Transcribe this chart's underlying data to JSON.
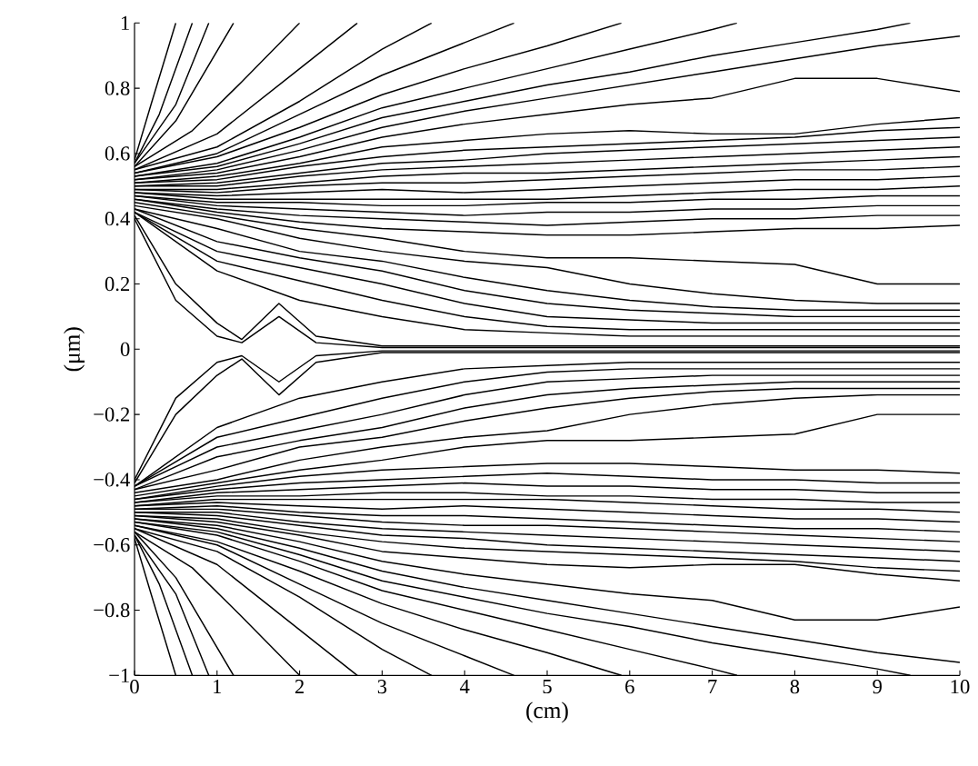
{
  "chart_data": {
    "type": "line",
    "xlabel": "(cm)",
    "ylabel": "(μm)",
    "color": "#000000",
    "marker": "none",
    "line_style": "solid",
    "grid": false,
    "xlim": [
      0,
      10
    ],
    "ylim": [
      -1,
      1
    ],
    "xticks": [
      0,
      1,
      2,
      3,
      4,
      5,
      6,
      7,
      8,
      9,
      10
    ],
    "yticks": [
      {
        "value": -1,
        "label": "−1"
      },
      {
        "value": -0.8,
        "label": "−0.8"
      },
      {
        "value": -0.6,
        "label": "−0.6"
      },
      {
        "value": -0.4,
        "label": "−0.4"
      },
      {
        "value": -0.2,
        "label": "−0.2"
      },
      0,
      0.2,
      0.4,
      0.6,
      0.8,
      1
    ],
    "x": [
      0,
      1,
      2,
      3,
      4,
      5,
      6,
      7,
      8,
      9,
      10
    ],
    "series": [
      {
        "x": [
          0,
          0.2,
          0.5
        ],
        "values": [
          0.58,
          0.75,
          1.0
        ]
      },
      {
        "x": [
          0,
          0.3,
          0.7
        ],
        "values": [
          0.57,
          0.72,
          1.0
        ]
      },
      {
        "x": [
          0,
          0.5,
          0.9
        ],
        "values": [
          0.57,
          0.75,
          1.0
        ]
      },
      {
        "x": [
          0,
          0.5,
          1.2
        ],
        "values": [
          0.56,
          0.7,
          1.0
        ]
      },
      {
        "x": [
          0,
          0.7,
          1.3,
          2.0
        ],
        "values": [
          0.56,
          0.67,
          0.82,
          1.0
        ]
      },
      {
        "x": [
          0,
          1,
          2,
          2.7
        ],
        "values": [
          0.55,
          0.66,
          0.86,
          1.0
        ]
      },
      {
        "x": [
          0,
          1,
          2,
          3,
          3.6
        ],
        "values": [
          0.55,
          0.62,
          0.76,
          0.92,
          1.0
        ]
      },
      {
        "x": [
          0,
          1,
          2,
          3,
          4,
          4.6
        ],
        "values": [
          0.54,
          0.6,
          0.72,
          0.84,
          0.94,
          1.0
        ]
      },
      {
        "x": [
          0,
          1,
          2,
          3,
          4,
          5,
          5.9
        ],
        "values": [
          0.54,
          0.59,
          0.68,
          0.78,
          0.86,
          0.93,
          1.0
        ]
      },
      {
        "x": [
          0,
          1,
          2,
          3,
          4,
          5,
          6,
          7,
          7.3
        ],
        "values": [
          0.53,
          0.57,
          0.65,
          0.74,
          0.8,
          0.86,
          0.92,
          0.98,
          1.0
        ]
      },
      {
        "x": [
          0,
          1,
          2,
          3,
          4,
          5,
          6,
          7,
          8,
          9,
          9.4
        ],
        "values": [
          0.53,
          0.56,
          0.63,
          0.71,
          0.76,
          0.81,
          0.85,
          0.9,
          0.94,
          0.98,
          1.0
        ]
      },
      {
        "values": [
          0.52,
          0.55,
          0.61,
          0.68,
          0.73,
          0.77,
          0.81,
          0.85,
          0.89,
          0.93,
          0.96
        ]
      },
      {
        "values": [
          0.52,
          0.54,
          0.59,
          0.65,
          0.69,
          0.72,
          0.75,
          0.77,
          0.83,
          0.83,
          0.79
        ]
      },
      {
        "values": [
          0.51,
          0.53,
          0.57,
          0.62,
          0.64,
          0.66,
          0.67,
          0.66,
          0.66,
          0.69,
          0.71
        ]
      },
      {
        "values": [
          0.51,
          0.52,
          0.56,
          0.59,
          0.61,
          0.62,
          0.63,
          0.64,
          0.65,
          0.67,
          0.68
        ]
      },
      {
        "values": [
          0.5,
          0.51,
          0.54,
          0.57,
          0.58,
          0.6,
          0.61,
          0.62,
          0.63,
          0.64,
          0.65
        ]
      },
      {
        "values": [
          0.5,
          0.5,
          0.53,
          0.55,
          0.56,
          0.57,
          0.58,
          0.59,
          0.6,
          0.61,
          0.62
        ]
      },
      {
        "values": [
          0.49,
          0.49,
          0.51,
          0.53,
          0.54,
          0.54,
          0.55,
          0.56,
          0.57,
          0.58,
          0.59
        ]
      },
      {
        "values": [
          0.49,
          0.48,
          0.5,
          0.51,
          0.51,
          0.52,
          0.53,
          0.54,
          0.55,
          0.55,
          0.56
        ]
      },
      {
        "values": [
          0.48,
          0.47,
          0.48,
          0.49,
          0.48,
          0.49,
          0.5,
          0.51,
          0.52,
          0.52,
          0.53
        ]
      },
      {
        "values": [
          0.48,
          0.46,
          0.46,
          0.46,
          0.46,
          0.46,
          0.47,
          0.48,
          0.49,
          0.49,
          0.5
        ]
      },
      {
        "values": [
          0.47,
          0.45,
          0.45,
          0.44,
          0.44,
          0.45,
          0.45,
          0.46,
          0.46,
          0.47,
          0.47
        ]
      },
      {
        "values": [
          0.47,
          0.44,
          0.43,
          0.42,
          0.41,
          0.42,
          0.42,
          0.43,
          0.43,
          0.44,
          0.44
        ]
      },
      {
        "values": [
          0.46,
          0.43,
          0.41,
          0.4,
          0.39,
          0.38,
          0.39,
          0.4,
          0.4,
          0.41,
          0.41
        ]
      },
      {
        "values": [
          0.46,
          0.42,
          0.39,
          0.37,
          0.36,
          0.35,
          0.35,
          0.36,
          0.37,
          0.37,
          0.38
        ]
      },
      {
        "values": [
          0.45,
          0.41,
          0.37,
          0.34,
          0.3,
          0.28,
          0.28,
          0.27,
          0.26,
          0.2,
          0.2
        ]
      },
      {
        "values": [
          0.44,
          0.4,
          0.34,
          0.3,
          0.27,
          0.25,
          0.2,
          0.17,
          0.15,
          0.14,
          0.14
        ]
      },
      {
        "values": [
          0.43,
          0.37,
          0.3,
          0.27,
          0.22,
          0.18,
          0.15,
          0.13,
          0.12,
          0.12,
          0.12
        ]
      },
      {
        "values": [
          0.43,
          0.33,
          0.28,
          0.24,
          0.18,
          0.14,
          0.12,
          0.11,
          0.1,
          0.1,
          0.1
        ]
      },
      {
        "values": [
          0.42,
          0.3,
          0.25,
          0.2,
          0.14,
          0.1,
          0.09,
          0.08,
          0.08,
          0.08,
          0.08
        ]
      },
      {
        "values": [
          0.42,
          0.27,
          0.21,
          0.15,
          0.1,
          0.07,
          0.06,
          0.06,
          0.06,
          0.06,
          0.06
        ]
      },
      {
        "values": [
          0.42,
          0.24,
          0.15,
          0.1,
          0.06,
          0.05,
          0.04,
          0.04,
          0.04,
          0.04,
          0.04
        ]
      },
      {
        "x": [
          0,
          0.5,
          1,
          1.3,
          1.75,
          2.2,
          3,
          10
        ],
        "values": [
          0.41,
          0.2,
          0.08,
          0.03,
          0.14,
          0.04,
          0.01,
          0.01
        ]
      },
      {
        "x": [
          0,
          0.5,
          1,
          1.3,
          1.75,
          2.2,
          3,
          10
        ],
        "values": [
          0.4,
          0.15,
          0.04,
          0.02,
          0.1,
          0.02,
          0.005,
          0.005
        ]
      },
      {
        "x": [
          0,
          0.5,
          1,
          1.3,
          1.75,
          2.2,
          3,
          10
        ],
        "values": [
          -0.4,
          -0.15,
          -0.04,
          -0.02,
          -0.1,
          -0.02,
          -0.005,
          -0.005
        ]
      },
      {
        "x": [
          0,
          0.5,
          1,
          1.3,
          1.75,
          2.2,
          3,
          10
        ],
        "values": [
          -0.41,
          -0.2,
          -0.08,
          -0.03,
          -0.14,
          -0.04,
          -0.01,
          -0.01
        ]
      },
      {
        "values": [
          -0.42,
          -0.24,
          -0.15,
          -0.1,
          -0.06,
          -0.05,
          -0.04,
          -0.04,
          -0.04,
          -0.04,
          -0.04
        ]
      },
      {
        "values": [
          -0.42,
          -0.27,
          -0.21,
          -0.15,
          -0.1,
          -0.07,
          -0.06,
          -0.06,
          -0.06,
          -0.06,
          -0.06
        ]
      },
      {
        "values": [
          -0.42,
          -0.3,
          -0.25,
          -0.2,
          -0.14,
          -0.1,
          -0.09,
          -0.08,
          -0.08,
          -0.08,
          -0.08
        ]
      },
      {
        "values": [
          -0.43,
          -0.33,
          -0.28,
          -0.24,
          -0.18,
          -0.14,
          -0.12,
          -0.11,
          -0.1,
          -0.1,
          -0.1
        ]
      },
      {
        "values": [
          -0.43,
          -0.37,
          -0.3,
          -0.27,
          -0.22,
          -0.18,
          -0.15,
          -0.13,
          -0.12,
          -0.12,
          -0.12
        ]
      },
      {
        "values": [
          -0.44,
          -0.4,
          -0.34,
          -0.3,
          -0.27,
          -0.25,
          -0.2,
          -0.17,
          -0.15,
          -0.14,
          -0.14
        ]
      },
      {
        "values": [
          -0.45,
          -0.41,
          -0.37,
          -0.34,
          -0.3,
          -0.28,
          -0.28,
          -0.27,
          -0.26,
          -0.2,
          -0.2
        ]
      },
      {
        "values": [
          -0.46,
          -0.42,
          -0.39,
          -0.37,
          -0.36,
          -0.35,
          -0.35,
          -0.36,
          -0.37,
          -0.37,
          -0.38
        ]
      },
      {
        "values": [
          -0.46,
          -0.43,
          -0.41,
          -0.4,
          -0.39,
          -0.38,
          -0.39,
          -0.4,
          -0.4,
          -0.41,
          -0.41
        ]
      },
      {
        "values": [
          -0.47,
          -0.44,
          -0.43,
          -0.42,
          -0.41,
          -0.42,
          -0.42,
          -0.43,
          -0.43,
          -0.44,
          -0.44
        ]
      },
      {
        "values": [
          -0.47,
          -0.45,
          -0.45,
          -0.44,
          -0.44,
          -0.45,
          -0.45,
          -0.46,
          -0.46,
          -0.47,
          -0.47
        ]
      },
      {
        "values": [
          -0.48,
          -0.46,
          -0.46,
          -0.46,
          -0.46,
          -0.46,
          -0.47,
          -0.48,
          -0.49,
          -0.49,
          -0.5
        ]
      },
      {
        "values": [
          -0.48,
          -0.47,
          -0.48,
          -0.49,
          -0.48,
          -0.49,
          -0.5,
          -0.51,
          -0.52,
          -0.52,
          -0.53
        ]
      },
      {
        "values": [
          -0.49,
          -0.48,
          -0.5,
          -0.51,
          -0.51,
          -0.52,
          -0.53,
          -0.54,
          -0.55,
          -0.55,
          -0.56
        ]
      },
      {
        "values": [
          -0.49,
          -0.49,
          -0.51,
          -0.53,
          -0.54,
          -0.54,
          -0.55,
          -0.56,
          -0.57,
          -0.58,
          -0.59
        ]
      },
      {
        "values": [
          -0.5,
          -0.5,
          -0.53,
          -0.55,
          -0.56,
          -0.57,
          -0.58,
          -0.59,
          -0.6,
          -0.61,
          -0.62
        ]
      },
      {
        "values": [
          -0.5,
          -0.51,
          -0.54,
          -0.57,
          -0.58,
          -0.6,
          -0.61,
          -0.62,
          -0.63,
          -0.64,
          -0.65
        ]
      },
      {
        "values": [
          -0.51,
          -0.52,
          -0.56,
          -0.59,
          -0.61,
          -0.62,
          -0.63,
          -0.64,
          -0.65,
          -0.67,
          -0.68
        ]
      },
      {
        "values": [
          -0.51,
          -0.53,
          -0.57,
          -0.62,
          -0.64,
          -0.66,
          -0.67,
          -0.66,
          -0.66,
          -0.69,
          -0.71
        ]
      },
      {
        "values": [
          -0.52,
          -0.54,
          -0.59,
          -0.65,
          -0.69,
          -0.72,
          -0.75,
          -0.77,
          -0.83,
          -0.83,
          -0.79
        ]
      },
      {
        "values": [
          -0.52,
          -0.55,
          -0.61,
          -0.68,
          -0.73,
          -0.77,
          -0.81,
          -0.85,
          -0.89,
          -0.93,
          -0.96
        ]
      },
      {
        "x": [
          0,
          1,
          2,
          3,
          4,
          5,
          6,
          7,
          8,
          9,
          9.4
        ],
        "values": [
          -0.53,
          -0.56,
          -0.63,
          -0.71,
          -0.76,
          -0.81,
          -0.85,
          -0.9,
          -0.94,
          -0.98,
          -1.0
        ]
      },
      {
        "x": [
          0,
          1,
          2,
          3,
          4,
          5,
          6,
          7,
          7.3
        ],
        "values": [
          -0.53,
          -0.57,
          -0.65,
          -0.74,
          -0.8,
          -0.86,
          -0.92,
          -0.98,
          -1.0
        ]
      },
      {
        "x": [
          0,
          1,
          2,
          3,
          4,
          5,
          5.9
        ],
        "values": [
          -0.54,
          -0.59,
          -0.68,
          -0.78,
          -0.86,
          -0.93,
          -1.0
        ]
      },
      {
        "x": [
          0,
          1,
          2,
          3,
          4,
          4.6
        ],
        "values": [
          -0.54,
          -0.6,
          -0.72,
          -0.84,
          -0.94,
          -1.0
        ]
      },
      {
        "x": [
          0,
          1,
          2,
          3,
          3.6
        ],
        "values": [
          -0.55,
          -0.62,
          -0.76,
          -0.92,
          -1.0
        ]
      },
      {
        "x": [
          0,
          1,
          2,
          2.7
        ],
        "values": [
          -0.55,
          -0.66,
          -0.86,
          -1.0
        ]
      },
      {
        "x": [
          0,
          0.7,
          1.3,
          2.0
        ],
        "values": [
          -0.56,
          -0.67,
          -0.82,
          -1.0
        ]
      },
      {
        "x": [
          0,
          0.5,
          1.2
        ],
        "values": [
          -0.56,
          -0.7,
          -1.0
        ]
      },
      {
        "x": [
          0,
          0.5,
          0.9
        ],
        "values": [
          -0.57,
          -0.75,
          -1.0
        ]
      },
      {
        "x": [
          0,
          0.3,
          0.7
        ],
        "values": [
          -0.57,
          -0.72,
          -1.0
        ]
      },
      {
        "x": [
          0,
          0.2,
          0.5
        ],
        "values": [
          -0.58,
          -0.75,
          -1.0
        ]
      }
    ]
  }
}
